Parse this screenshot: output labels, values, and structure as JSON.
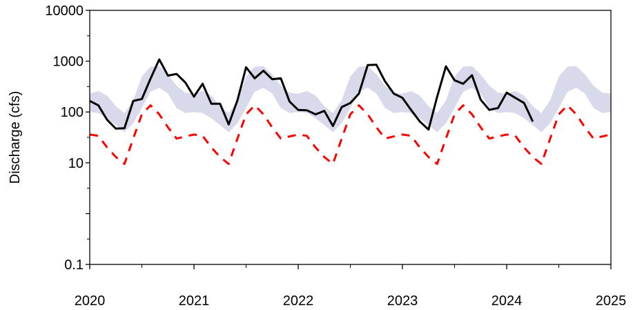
{
  "chart_data": {
    "type": "line",
    "title": "",
    "xlabel": "",
    "ylabel": "Discharge (cfs)",
    "y_scale": "log",
    "ylim": [
      0.1,
      10000
    ],
    "xlim": [
      2020,
      2025
    ],
    "x_ticks": [
      "2020",
      "2021",
      "2022",
      "2023",
      "2024",
      "2025"
    ],
    "y_ticks": [
      "0.1",
      "10",
      "100",
      "1000",
      "10000"
    ],
    "grid": false,
    "legend": "none",
    "series": [
      {
        "style": "band",
        "color": "#d9d9ec",
        "x": [
          2020.0,
          2020.083,
          2020.167,
          2020.25,
          2020.333,
          2020.417,
          2020.5,
          2020.583,
          2020.667,
          2020.75,
          2020.833,
          2020.917
        ],
        "lower": [
          100,
          95,
          75,
          55,
          40,
          60,
          120,
          250,
          300,
          230,
          120,
          95
        ],
        "upper": [
          230,
          260,
          210,
          130,
          95,
          170,
          500,
          780,
          800,
          550,
          330,
          240
        ],
        "repeat_years": 5
      },
      {
        "style": "solid",
        "color": "#000000",
        "x": [
          2020.0,
          2020.083,
          2020.167,
          2020.25,
          2020.333,
          2020.417,
          2020.5,
          2020.583,
          2020.667,
          2020.75,
          2020.833,
          2020.917,
          2021.0,
          2021.083,
          2021.167,
          2021.25,
          2021.333,
          2021.417,
          2021.5,
          2021.583,
          2021.667,
          2021.75,
          2021.833,
          2021.917,
          2022.0,
          2022.083,
          2022.167,
          2022.25,
          2022.333,
          2022.417,
          2022.5,
          2022.583,
          2022.667,
          2022.75,
          2022.833,
          2022.917,
          2023.0,
          2023.083,
          2023.167,
          2023.25,
          2023.333,
          2023.417,
          2023.5,
          2023.583,
          2023.667,
          2023.75,
          2023.833,
          2023.917,
          2024.0,
          2024.083,
          2024.167,
          2024.25
        ],
        "y": [
          165,
          135,
          70,
          47,
          48,
          165,
          180,
          450,
          1080,
          520,
          560,
          380,
          200,
          360,
          145,
          145,
          57,
          170,
          760,
          460,
          650,
          440,
          460,
          160,
          110,
          108,
          90,
          105,
          53,
          125,
          150,
          230,
          840,
          850,
          400,
          230,
          190,
          110,
          65,
          45,
          200,
          790,
          420,
          360,
          530,
          175,
          110,
          120,
          240,
          190,
          150,
          65
        ]
      },
      {
        "style": "dashed",
        "color": "#ff0000",
        "x": [
          2020.0,
          2020.083,
          2020.167,
          2020.25,
          2020.333,
          2020.417,
          2020.5,
          2020.583,
          2020.667,
          2020.75,
          2020.833,
          2020.917
        ],
        "y": [
          36,
          34,
          20,
          13,
          9.5,
          30,
          90,
          135,
          90,
          50,
          30,
          33
        ],
        "repeat_years": 5
      }
    ]
  }
}
